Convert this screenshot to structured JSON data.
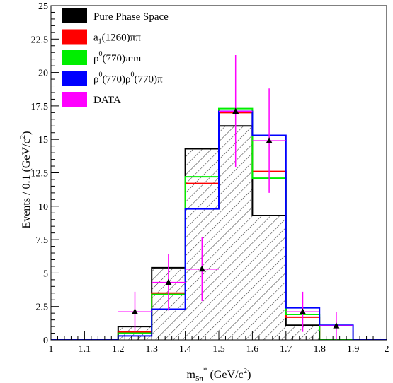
{
  "chart_data": {
    "type": "histogram",
    "x_edges": [
      1.0,
      1.1,
      1.2,
      1.3,
      1.4,
      1.5,
      1.6,
      1.7,
      1.8,
      1.9,
      2.0
    ],
    "xlim": [
      1.0,
      2.0
    ],
    "ylim": [
      0,
      25
    ],
    "xticks": [
      "1",
      "1.1",
      "1.2",
      "1.3",
      "1.4",
      "1.5",
      "1.6",
      "1.7",
      "1.8",
      "1.9",
      "2"
    ],
    "yticks": [
      "0",
      "2.5",
      "5",
      "7.5",
      "10",
      "12.5",
      "15",
      "17.5",
      "20",
      "22.5",
      "25"
    ],
    "xlabel": {
      "main": "m",
      "sub": "5π",
      "sup": "*",
      "unit": " (GeV/c",
      "unit_sup": "2",
      "close": ")"
    },
    "ylabel": {
      "main": "Events / 0.1 (GeV/c",
      "sup": "2",
      "close": ")"
    },
    "series": [
      {
        "name": "Pure Phase Space",
        "legend_main": "Pure Phase Space",
        "color": "#000000",
        "hatched": true,
        "values": [
          0,
          0,
          1.0,
          5.4,
          14.3,
          16.0,
          9.3,
          1.1,
          0,
          0
        ]
      },
      {
        "name": "a1(1260)ππ",
        "legend_main": "a",
        "legend_sub": "1",
        "legend_rest": "(1260)ππ",
        "color": "#ff0000",
        "values": [
          0,
          0,
          0.6,
          3.5,
          11.7,
          17.0,
          12.6,
          1.7,
          0,
          0
        ]
      },
      {
        "name": "ρ0(770)πππ",
        "legend_main": "ρ",
        "legend_sup": "0",
        "legend_rest": "(770)πππ",
        "color": "#00ee00",
        "values": [
          0,
          0,
          0.5,
          3.4,
          12.2,
          17.3,
          12.1,
          1.9,
          0,
          0
        ]
      },
      {
        "name": "ρ0(770)ρ0(770)π",
        "legend_main": "ρ",
        "legend_sup": "0",
        "legend_rest": "(770)ρ",
        "legend_sup2": "0",
        "legend_rest2": "(770)π",
        "color": "#0000ff",
        "values": [
          0,
          0,
          0.3,
          2.3,
          9.8,
          17.1,
          15.3,
          2.4,
          1.1,
          0
        ]
      },
      {
        "name": "DATA",
        "legend_main": "DATA",
        "color": "#ff00ff",
        "is_data": true,
        "points": [
          {
            "x": 1.25,
            "y": 2.1,
            "err": 1.5
          },
          {
            "x": 1.35,
            "y": 4.3,
            "err": 2.1
          },
          {
            "x": 1.45,
            "y": 5.3,
            "err": 2.4
          },
          {
            "x": 1.55,
            "y": 17.1,
            "err": 4.2
          },
          {
            "x": 1.65,
            "y": 14.9,
            "err": 3.9
          },
          {
            "x": 1.75,
            "y": 2.1,
            "err": 1.5
          },
          {
            "x": 1.85,
            "y": 1.05,
            "err": 1.05
          }
        ]
      }
    ]
  }
}
